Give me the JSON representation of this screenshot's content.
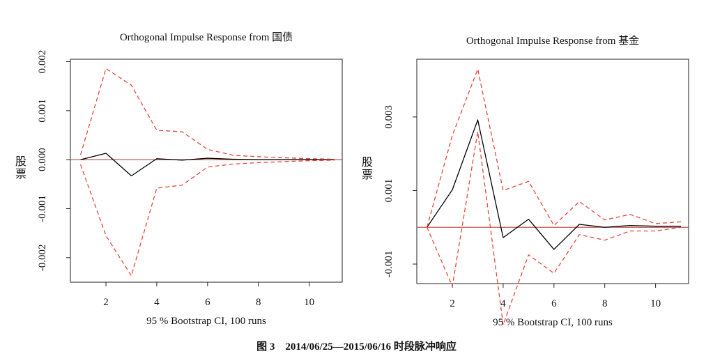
{
  "figure_caption": "图 3　2014/06/25—2015/06/16 时段脉冲响应",
  "chart_data": [
    {
      "type": "line",
      "title": "Orthogonal Impulse Response from 国债",
      "xlabel": "95 % Bootstrap CI,  100 runs",
      "ylabel": "股票",
      "xlim": [
        0.6,
        11.3
      ],
      "ylim": [
        -0.0025,
        0.00205
      ],
      "xticks": [
        2,
        4,
        6,
        8,
        10
      ],
      "xtick_labels": [
        "2",
        "4",
        "6",
        "8",
        "10"
      ],
      "yticks": [
        -0.002,
        -0.001,
        0.0,
        0.001,
        0.002
      ],
      "ytick_labels": [
        "-0.002",
        "-0.001",
        "0.000",
        "0.001",
        "0.002"
      ],
      "zero_line": 0,
      "x": [
        1,
        2,
        3,
        4,
        5,
        6,
        7,
        8,
        9,
        10,
        11
      ],
      "series": [
        {
          "role": "response",
          "color": "#000000",
          "dash": "solid",
          "values": [
            0.0,
            0.00013,
            -0.00033,
            2e-05,
            -1e-05,
            3e-05,
            1e-05,
            0.0,
            0.0,
            0.0,
            0.0
          ]
        },
        {
          "role": "upper",
          "color": "#e8453c",
          "dash": "dashed",
          "values": [
            0.0001,
            0.00186,
            0.00152,
            0.0006,
            0.00057,
            0.00021,
            9e-05,
            6e-05,
            4e-05,
            2e-05,
            1e-05
          ]
        },
        {
          "role": "lower",
          "color": "#e8453c",
          "dash": "dashed",
          "values": [
            -0.0001,
            -0.00155,
            -0.00237,
            -0.00058,
            -0.00052,
            -0.00015,
            -9e-05,
            -6e-05,
            -4e-05,
            -2e-05,
            -1e-05
          ]
        }
      ]
    },
    {
      "type": "line",
      "title": "Orthogonal Impulse Response from 基金",
      "xlabel": "95 % Bootstrap CI,  100 runs",
      "ylabel": "股票",
      "xlim": [
        0.6,
        11.3
      ],
      "ylim": [
        -0.00153,
        0.00457
      ],
      "xticks": [
        2,
        4,
        6,
        8,
        10
      ],
      "xtick_labels": [
        "2",
        "4",
        "6",
        "8",
        "10"
      ],
      "yticks": [
        -0.001,
        0.001,
        0.003
      ],
      "ytick_labels": [
        "-0.001",
        "0.001",
        "0.003"
      ],
      "zero_line": 0,
      "x": [
        1,
        2,
        3,
        4,
        5,
        6,
        7,
        8,
        9,
        10,
        11
      ],
      "series": [
        {
          "role": "response",
          "color": "#000000",
          "dash": "solid",
          "values": [
            0.0,
            0.00102,
            0.00292,
            -0.00028,
            0.00022,
            -0.0006,
            8e-05,
            0.0,
            5e-05,
            3e-05,
            3e-05
          ]
        },
        {
          "role": "upper",
          "color": "#e8453c",
          "dash": "dashed",
          "values": [
            0.0,
            0.0025,
            0.0043,
            0.001,
            0.00125,
            5e-05,
            0.0007,
            0.0002,
            0.00035,
            0.0001,
            0.00015
          ]
        },
        {
          "role": "lower",
          "color": "#e8453c",
          "dash": "dashed",
          "values": [
            0.0,
            -0.0016,
            0.0026,
            -0.00265,
            -0.00075,
            -0.00125,
            -0.0002,
            -0.00035,
            -0.0001,
            -0.0001,
            0.0
          ]
        }
      ]
    }
  ]
}
